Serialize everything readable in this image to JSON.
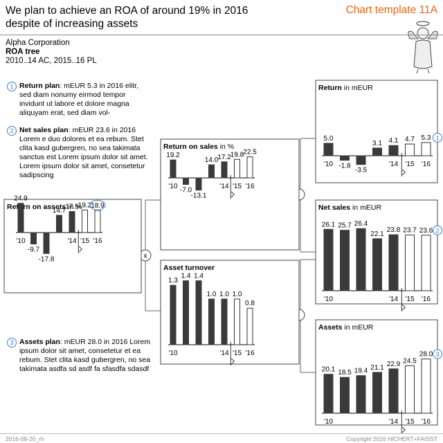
{
  "header": {
    "title_line1": "We plan to achieve an ROA of around 19% in 2016",
    "title_line2": "despite of increasing assets",
    "template": "Chart template 11A"
  },
  "meta": {
    "company": "Alpha Corporation",
    "subject": "ROA tree",
    "period": "2010..14 AC, 2015..16 PL"
  },
  "notes": [
    {
      "num": "1",
      "label": "Return plan",
      "text": ": mEUR 5.3 in 2016 elitr, sed diam nonumy eirmod tempor invidunt ut labore et dolore magna aliquyam erat, sed diam vol-"
    },
    {
      "num": "2",
      "label": "Net sales plan",
      "text": ": mEUR 23.6 in 2016 Lorem e duo dolores et ea rebum. Stet clita kasd gubergren, no sea takimata sanctus est Lorem ipsum dolor sit amet. Lorem ipsum dolor sit amet, consetetur sadipscing"
    },
    {
      "num": "3",
      "label": "Assets plan",
      "text": ": mEUR 28.0 in 2016 Lorem ipsum dolor sit amet, consetetur et ea rebum. Stet clita kasd gubergren, no sea takimata asdfa sd asdf fa sfasdfa sdasdf"
    }
  ],
  "operators": {
    "multiply": "x",
    "divide": ":"
  },
  "footer": {
    "left": "2016-08-20_rh",
    "right": "Copyright 2016 HICHERT+FAISST"
  },
  "chart_data": [
    {
      "id": "roa",
      "type": "bar",
      "title": "Return on assets",
      "unit": " in %",
      "categories": [
        "'10",
        "",
        "",
        "",
        "'14",
        "'15",
        "'16"
      ],
      "values": [
        24.9,
        -9.7,
        -17.8,
        14.7,
        17.9,
        19.2,
        18.9
      ],
      "labels": [
        "24.9",
        "-9.7",
        "-17.8",
        "14.7",
        "17.9",
        "19.2",
        "18.9"
      ],
      "plan_from_index": 5,
      "highlight_index": 6
    },
    {
      "id": "ros",
      "type": "bar",
      "title": "Return on sales",
      "unit": " in %",
      "categories": [
        "'10",
        "",
        "",
        "",
        "'14",
        "'15",
        "'16"
      ],
      "values": [
        19.2,
        -7.0,
        -13.1,
        14.0,
        17.2,
        19.8,
        22.5
      ],
      "labels": [
        "19.2",
        "-7.0",
        "-13.1",
        "14.0",
        "17.2",
        "19.8",
        "22.5"
      ],
      "plan_from_index": 5
    },
    {
      "id": "turnover",
      "type": "bar",
      "title": "Asset turnover",
      "unit": "",
      "categories": [
        "'10",
        "",
        "",
        "",
        "'14",
        "'15",
        "'16"
      ],
      "values": [
        1.3,
        1.4,
        1.4,
        1.0,
        1.0,
        1.0,
        0.8
      ],
      "labels": [
        "1.3",
        "1.4",
        "1.4",
        "1.0",
        "1.0",
        "1.0",
        "0.8"
      ],
      "plan_from_index": 5
    },
    {
      "id": "return",
      "type": "bar",
      "title": "Return",
      "unit": " in mEUR",
      "categories": [
        "'10",
        "",
        "",
        "",
        "'14",
        "'15",
        "'16"
      ],
      "values": [
        5.0,
        -1.8,
        -3.5,
        3.1,
        4.1,
        4.7,
        5.3
      ],
      "labels": [
        "5.0",
        "-1.8",
        "-3.5",
        "3.1",
        "4.1",
        "4.7",
        "5.3"
      ],
      "plan_from_index": 5,
      "badge": "1"
    },
    {
      "id": "sales",
      "type": "bar",
      "title": "Net sales",
      "unit": " in mEUR",
      "categories": [
        "'10",
        "",
        "",
        "",
        "'14",
        "'15",
        "'16"
      ],
      "values": [
        26.1,
        25.7,
        26.4,
        22.1,
        23.8,
        23.7,
        23.6
      ],
      "labels": [
        "26.1",
        "25.7",
        "26.4",
        "22.1",
        "23.8",
        "23.7",
        "23.6"
      ],
      "plan_from_index": 5,
      "badge": "2"
    },
    {
      "id": "assets",
      "type": "bar",
      "title": "Assets",
      "unit": " in mEUR",
      "categories": [
        "'10",
        "",
        "",
        "",
        "'14",
        "'15",
        "'16"
      ],
      "values": [
        20.1,
        18.5,
        19.4,
        21.1,
        22.9,
        24.5,
        28.0
      ],
      "labels": [
        "20.1",
        "18.5",
        "19.4",
        "21.1",
        "22.9",
        "24.5",
        "28.0"
      ],
      "plan_from_index": 5,
      "badge": "3"
    }
  ]
}
